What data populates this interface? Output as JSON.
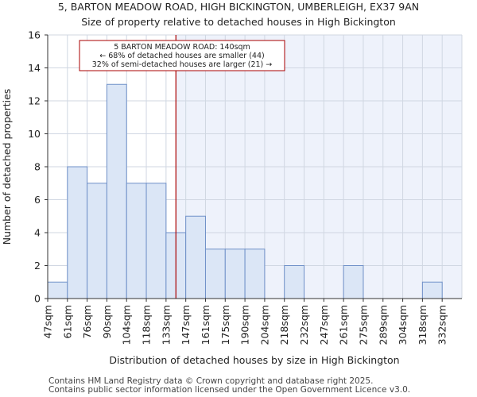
{
  "chart_data": {
    "type": "bar",
    "title": "5, BARTON MEADOW ROAD, HIGH BICKINGTON, UMBERLEIGH, EX37 9AN",
    "subtitle": "Size of property relative to detached houses in High Bickington",
    "xlabel": "Distribution of detached houses by size in High Bickington",
    "ylabel": "Number of detached properties",
    "categories": [
      "47sqm",
      "61sqm",
      "76sqm",
      "90sqm",
      "104sqm",
      "118sqm",
      "133sqm",
      "147sqm",
      "161sqm",
      "175sqm",
      "190sqm",
      "204sqm",
      "218sqm",
      "232sqm",
      "247sqm",
      "261sqm",
      "275sqm",
      "289sqm",
      "304sqm",
      "318sqm",
      "332sqm"
    ],
    "values": [
      1,
      8,
      7,
      13,
      7,
      7,
      4,
      5,
      3,
      3,
      3,
      0,
      2,
      0,
      0,
      2,
      0,
      0,
      0,
      1,
      0
    ],
    "ylim": [
      0,
      16
    ],
    "yticks": [
      0,
      2,
      4,
      6,
      8,
      10,
      12,
      14,
      16
    ],
    "grid": true,
    "marker": {
      "value_sqm": 140,
      "line_color": "#aa0000",
      "annotation": [
        "5 BARTON MEADOW ROAD: 140sqm",
        "← 68% of detached houses are smaller (44)",
        "32% of semi-detached houses are larger (21) →"
      ]
    },
    "colors": {
      "bar_fill": "#dbe6f6",
      "bar_stroke": "#6f90c8",
      "highlight_bg": "#eef2fb",
      "grid": "#d0d7e2"
    },
    "footer": [
      "Contains HM Land Registry data © Crown copyright and database right 2025.",
      "Contains public sector information licensed under the Open Government Licence v3.0."
    ]
  }
}
